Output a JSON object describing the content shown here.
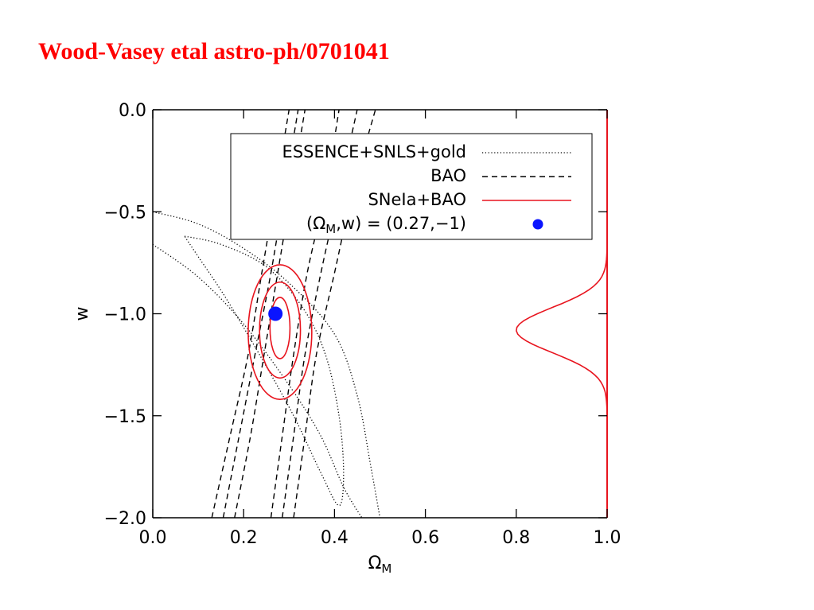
{
  "slide": {
    "title": "Wood-Vasey etal  astro-ph/0701041"
  },
  "colors": {
    "title": "#ff0000",
    "sn_bao": "#e8141e",
    "point": "#0a14ff",
    "ink": "#000000"
  },
  "chart_data": {
    "type": "contour",
    "xlabel": "ΩM",
    "ylabel": "w",
    "xlim": [
      0.0,
      1.0
    ],
    "ylim": [
      -2.0,
      0.0
    ],
    "x_ticks": [
      "0.0",
      "0.2",
      "0.4",
      "0.6",
      "0.8",
      "1.0"
    ],
    "y_ticks": [
      "0.0",
      "−0.5",
      "−1.0",
      "−1.5",
      "−2.0"
    ],
    "legend_position": "top-right",
    "legend": [
      {
        "label": "ESSENCE+SNLS+gold",
        "style": "dotted"
      },
      {
        "label": "BAO",
        "style": "dashed"
      },
      {
        "label": "SNeIa+BAO",
        "style": "solid-red"
      },
      {
        "label_main": "(Ω",
        "label_sub": "M",
        "label_rest": ",w) = (0.27,−1)",
        "style": "blue-dot"
      }
    ],
    "fiducial_point": {
      "x": 0.27,
      "y": -1.0
    },
    "series": [
      {
        "name": "ESSENCE+SNLS+gold",
        "style": "dotted",
        "contours": [
          [
            [
              0.0,
              -0.66
            ],
            [
              0.1,
              -0.82
            ],
            [
              0.2,
              -1.05
            ],
            [
              0.3,
              -1.35
            ],
            [
              0.37,
              -1.6
            ],
            [
              0.42,
              -1.85
            ],
            [
              0.46,
              -2.0
            ]
          ],
          [
            [
              0.0,
              -0.5
            ],
            [
              0.1,
              -0.56
            ],
            [
              0.2,
              -0.68
            ],
            [
              0.3,
              -0.85
            ],
            [
              0.4,
              -1.1
            ],
            [
              0.45,
              -1.4
            ],
            [
              0.48,
              -1.75
            ],
            [
              0.5,
              -2.0
            ]
          ],
          [
            [
              0.07,
              -0.62
            ],
            [
              0.15,
              -0.66
            ],
            [
              0.25,
              -0.77
            ],
            [
              0.33,
              -0.97
            ],
            [
              0.38,
              -1.2
            ],
            [
              0.41,
              -1.5
            ],
            [
              0.42,
              -1.78
            ],
            [
              0.41,
              -1.94
            ],
            [
              0.37,
              -1.78
            ],
            [
              0.31,
              -1.5
            ],
            [
              0.24,
              -1.22
            ],
            [
              0.16,
              -0.92
            ],
            [
              0.1,
              -0.72
            ],
            [
              0.07,
              -0.62
            ]
          ]
        ]
      },
      {
        "name": "BAO",
        "style": "dashed",
        "contours": [
          [
            [
              0.13,
              -2.0
            ],
            [
              0.17,
              -1.6
            ],
            [
              0.21,
              -1.2
            ],
            [
              0.24,
              -0.8
            ],
            [
              0.27,
              -0.4
            ],
            [
              0.3,
              0.0
            ]
          ],
          [
            [
              0.155,
              -2.0
            ],
            [
              0.19,
              -1.6
            ],
            [
              0.225,
              -1.2
            ],
            [
              0.26,
              -0.8
            ],
            [
              0.29,
              -0.4
            ],
            [
              0.32,
              0.0
            ]
          ],
          [
            [
              0.18,
              -2.0
            ],
            [
              0.215,
              -1.6
            ],
            [
              0.245,
              -1.2
            ],
            [
              0.275,
              -0.8
            ],
            [
              0.305,
              -0.4
            ],
            [
              0.335,
              0.0
            ]
          ],
          [
            [
              0.26,
              -2.0
            ],
            [
              0.285,
              -1.6
            ],
            [
              0.31,
              -1.2
            ],
            [
              0.34,
              -0.8
            ],
            [
              0.38,
              -0.4
            ],
            [
              0.41,
              0.0
            ]
          ],
          [
            [
              0.285,
              -2.0
            ],
            [
              0.31,
              -1.6
            ],
            [
              0.335,
              -1.2
            ],
            [
              0.37,
              -0.8
            ],
            [
              0.41,
              -0.4
            ],
            [
              0.45,
              0.0
            ]
          ],
          [
            [
              0.31,
              -2.0
            ],
            [
              0.335,
              -1.6
            ],
            [
              0.36,
              -1.2
            ],
            [
              0.4,
              -0.8
            ],
            [
              0.44,
              -0.4
            ],
            [
              0.49,
              0.0
            ]
          ]
        ]
      },
      {
        "name": "SNeIa+BAO",
        "style": "solid-red",
        "ellipses": [
          {
            "cx": 0.28,
            "cy": -1.07,
            "rx": 0.022,
            "ry": 0.15
          },
          {
            "cx": 0.28,
            "cy": -1.08,
            "rx": 0.045,
            "ry": 0.235
          },
          {
            "cx": 0.28,
            "cy": -1.09,
            "rx": 0.07,
            "ry": 0.33
          }
        ],
        "marginal": {
          "peak_w": -1.08,
          "sigma_w": 0.11,
          "peak_height": 0.2
        }
      }
    ]
  }
}
